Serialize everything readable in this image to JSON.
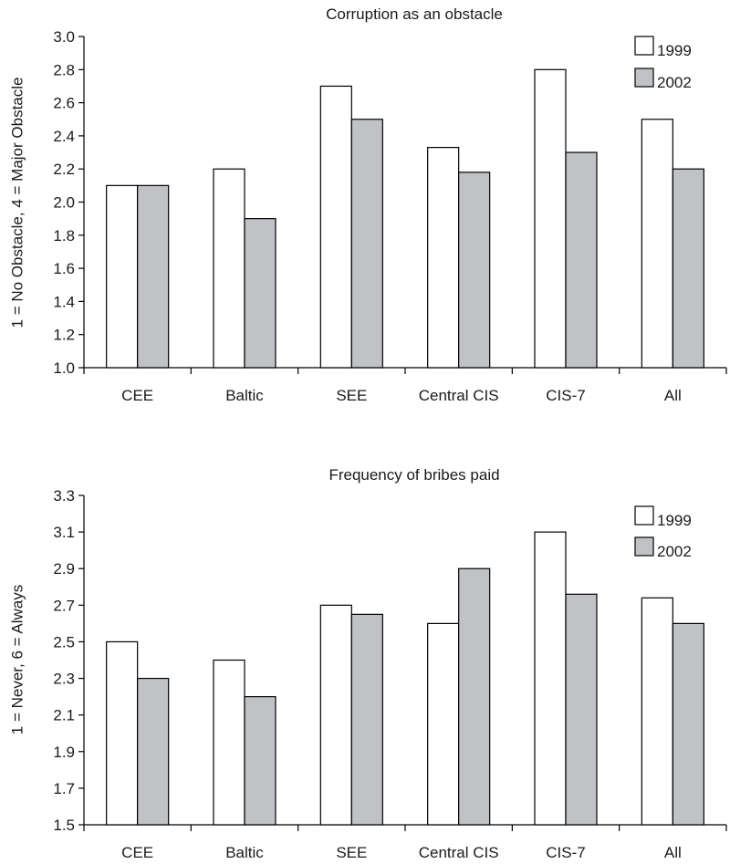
{
  "chart_data": [
    {
      "type": "bar",
      "title": "Corruption as an obstacle",
      "ylabel": "1 = No Obstacle, 4 = Major Obstacle",
      "xlabel": "",
      "categories": [
        "CEE",
        "Baltic",
        "SEE",
        "Central CIS",
        "CIS-7",
        "All"
      ],
      "series": [
        {
          "name": "1999",
          "values": [
            2.1,
            2.2,
            2.7,
            2.33,
            2.8,
            2.5
          ],
          "color": "#ffffff"
        },
        {
          "name": "2002",
          "values": [
            2.1,
            1.9,
            2.5,
            2.18,
            2.3,
            2.2
          ],
          "color": "#c0c2c6"
        }
      ],
      "ylim": [
        1.0,
        3.0
      ],
      "yticks": [
        "1.0",
        "1.2",
        "1.4",
        "1.6",
        "1.8",
        "2.0",
        "2.2",
        "2.4",
        "2.6",
        "2.8",
        "3.0"
      ],
      "grid": false,
      "legend": "top-right"
    },
    {
      "type": "bar",
      "title": "Frequency of bribes paid",
      "ylabel": "1 = Never, 6 = Always",
      "xlabel": "",
      "categories": [
        "CEE",
        "Baltic",
        "SEE",
        "Central CIS",
        "CIS-7",
        "All"
      ],
      "series": [
        {
          "name": "1999",
          "values": [
            2.5,
            2.4,
            2.7,
            2.6,
            3.1,
            2.74
          ],
          "color": "#ffffff"
        },
        {
          "name": "2002",
          "values": [
            2.3,
            2.2,
            2.65,
            2.9,
            2.76,
            2.6
          ],
          "color": "#c0c2c6"
        }
      ],
      "ylim": [
        1.5,
        3.3
      ],
      "yticks": [
        "1.5",
        "1.7",
        "1.9",
        "2.1",
        "2.3",
        "2.5",
        "2.7",
        "2.9",
        "3.1",
        "3.3"
      ],
      "grid": false,
      "legend": "top-right"
    }
  ]
}
